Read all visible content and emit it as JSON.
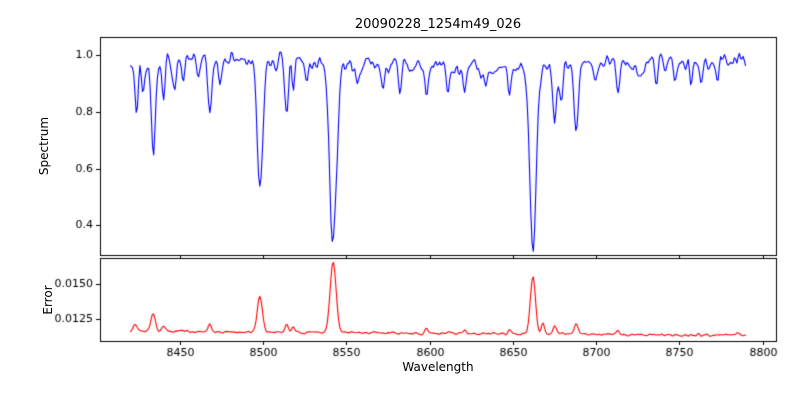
{
  "figure": {
    "title": "20090228_1254m49_026",
    "xlabel": "Wavelength",
    "ylabel_top": "Spectrum",
    "ylabel_bottom": "Error"
  },
  "chart_data": {
    "type": "line",
    "title": "20090228_1254m49_026",
    "xlabel": "Wavelength",
    "legend": "none",
    "grid": false,
    "seed": 7,
    "xlim": [
      8402,
      8808
    ],
    "x_range": [
      8420,
      8790
    ],
    "x_step": 0.75,
    "xtick_values": [
      8450,
      8500,
      8550,
      8600,
      8650,
      8700,
      8750,
      8800
    ],
    "xtick_labels": [
      "8450",
      "8500",
      "8550",
      "8600",
      "8650",
      "8700",
      "8750",
      "8800"
    ],
    "panels": [
      {
        "name": "spectrum",
        "ylabel": "Spectrum",
        "color": "#0000ff",
        "ylim": [
          0.295,
          1.065
        ],
        "ytick_values": [
          0.4,
          0.6,
          0.8,
          1.0
        ],
        "ytick_labels": [
          "0.4",
          "0.6",
          "0.8",
          "1.0"
        ],
        "continuum": 0.97,
        "continuum_wiggle": 0.012,
        "noise": 0.04,
        "lines": [
          [
            8424,
            0.17,
            1.0
          ],
          [
            8428,
            0.1,
            0.9
          ],
          [
            8434,
            0.35,
            1.3
          ],
          [
            8440,
            0.15,
            1.0
          ],
          [
            8447,
            0.1,
            0.9
          ],
          [
            8452,
            0.08,
            0.9
          ],
          [
            8461,
            0.07,
            0.9
          ],
          [
            8468,
            0.18,
            1.1
          ],
          [
            8474,
            0.07,
            0.9
          ],
          [
            8498,
            0.45,
            1.7
          ],
          [
            8514,
            0.17,
            1.1
          ],
          [
            8518,
            0.12,
            0.9
          ],
          [
            8526,
            0.06,
            0.9
          ],
          [
            8542,
            0.64,
            2.1
          ],
          [
            8556,
            0.07,
            0.9
          ],
          [
            8572,
            0.08,
            0.9
          ],
          [
            8582,
            0.1,
            0.9
          ],
          [
            8598,
            0.11,
            0.9
          ],
          [
            8611,
            0.09,
            0.9
          ],
          [
            8621,
            0.1,
            0.9
          ],
          [
            8634,
            0.07,
            0.9
          ],
          [
            8648,
            0.09,
            0.9
          ],
          [
            8662,
            0.64,
            2.0
          ],
          [
            8675,
            0.2,
            1.1
          ],
          [
            8679,
            0.12,
            0.9
          ],
          [
            8688,
            0.23,
            1.2
          ],
          [
            8699,
            0.07,
            0.9
          ],
          [
            8713,
            0.09,
            0.9
          ],
          [
            8726,
            0.06,
            0.9
          ],
          [
            8736,
            0.09,
            0.9
          ],
          [
            8747,
            0.06,
            0.9
          ],
          [
            8757,
            0.08,
            0.9
          ],
          [
            8763,
            0.07,
            0.9
          ],
          [
            8773,
            0.06,
            0.8
          ]
        ]
      },
      {
        "name": "error",
        "ylabel": "Error",
        "color": "#ff0000",
        "ylim": [
          0.01095,
          0.01685
        ],
        "ytick_values": [
          0.0125,
          0.015
        ],
        "ytick_labels": [
          "0.0125",
          "0.0150"
        ],
        "baseline": [
          0.01165,
          0.01135
        ],
        "noise": 0.00012,
        "peaks": [
          [
            8423,
            0.0005,
            1.0
          ],
          [
            8434,
            0.0013,
            1.3
          ],
          [
            8440,
            0.0004,
            1.0
          ],
          [
            8468,
            0.0006,
            1.0
          ],
          [
            8498,
            0.0026,
            1.5
          ],
          [
            8514,
            0.0006,
            1.0
          ],
          [
            8518,
            0.0004,
            0.9
          ],
          [
            8542,
            0.005,
            1.8
          ],
          [
            8598,
            0.0003,
            0.9
          ],
          [
            8621,
            0.0003,
            0.9
          ],
          [
            8648,
            0.0003,
            0.9
          ],
          [
            8662,
            0.0042,
            1.5
          ],
          [
            8668,
            0.0008,
            1.0
          ],
          [
            8675,
            0.0006,
            1.0
          ],
          [
            8688,
            0.0008,
            1.1
          ],
          [
            8713,
            0.0003,
            0.9
          ],
          [
            8785,
            0.0003,
            0.9
          ]
        ]
      }
    ]
  }
}
